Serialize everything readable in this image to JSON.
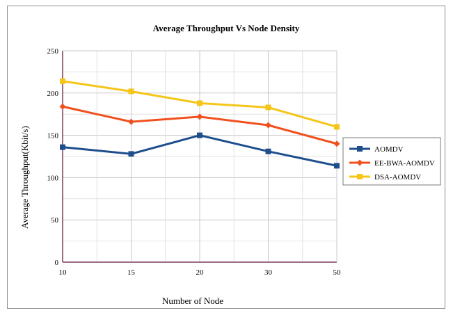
{
  "chart_data": {
    "type": "line",
    "title": "Average Throughput Vs Node Density",
    "xlabel": "Number of Node",
    "ylabel": "Average Throughput(Kbit/s)",
    "categories": [
      "10",
      "15",
      "20",
      "30",
      "50"
    ],
    "ylim": [
      0,
      250
    ],
    "yticks": [
      "0",
      "50",
      "100",
      "150",
      "200",
      "250"
    ],
    "grid": true,
    "legend_position": "right",
    "series": [
      {
        "name": "AOMDV",
        "color": "#1f4e8c",
        "marker": "square",
        "values": [
          136,
          128,
          150,
          131,
          114
        ]
      },
      {
        "name": "EE-BWA-AOMDV",
        "color": "#f0501e",
        "marker": "diamond",
        "values": [
          184,
          166,
          172,
          162,
          140
        ]
      },
      {
        "name": "DSA-AOMDV",
        "color": "#f5c518",
        "marker": "square",
        "values": [
          214,
          202,
          188,
          183,
          160
        ]
      }
    ]
  }
}
